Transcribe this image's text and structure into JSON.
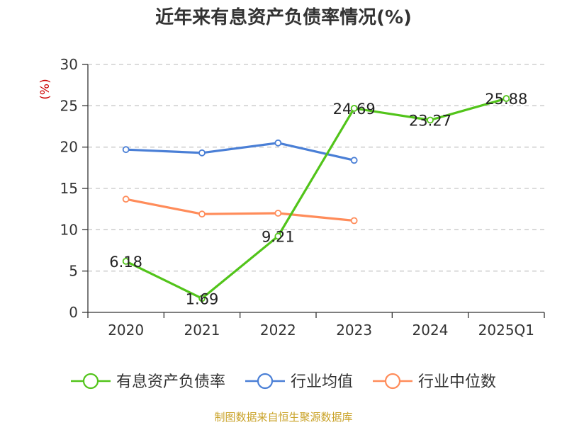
{
  "title": "近年来有息资产负债率情况(%)",
  "footer": "制图数据来自恒生聚源数据库",
  "colors": {
    "ratio": "#52c41a",
    "avg": "#4a7fd6",
    "median": "#ff8c5a",
    "ylabel": "#cc0000",
    "footer": "#c9a227",
    "grid": "#c8c8c8"
  },
  "chart_data": {
    "type": "line",
    "title": "近年来有息资产负债率情况(%)",
    "ylabel": "(%)",
    "xlabel": "",
    "categories": [
      "2020",
      "2021",
      "2022",
      "2023",
      "2024",
      "2025Q1"
    ],
    "ylim": [
      0,
      30
    ],
    "yticks": [
      0,
      5,
      10,
      15,
      20,
      25,
      30
    ],
    "grid": true,
    "legend_position": "bottom",
    "series": [
      {
        "name": "有息资产负债率",
        "values": [
          6.18,
          1.69,
          9.21,
          24.69,
          23.27,
          25.88
        ],
        "data_labels": [
          "6.18",
          "1.69",
          "9.21",
          "24.69",
          "23.27",
          "25.88"
        ]
      },
      {
        "name": "行业均值",
        "values": [
          19.7,
          19.3,
          20.5,
          18.4,
          null,
          null
        ]
      },
      {
        "name": "行业中位数",
        "values": [
          13.7,
          11.9,
          12.0,
          11.1,
          null,
          null
        ]
      }
    ]
  }
}
